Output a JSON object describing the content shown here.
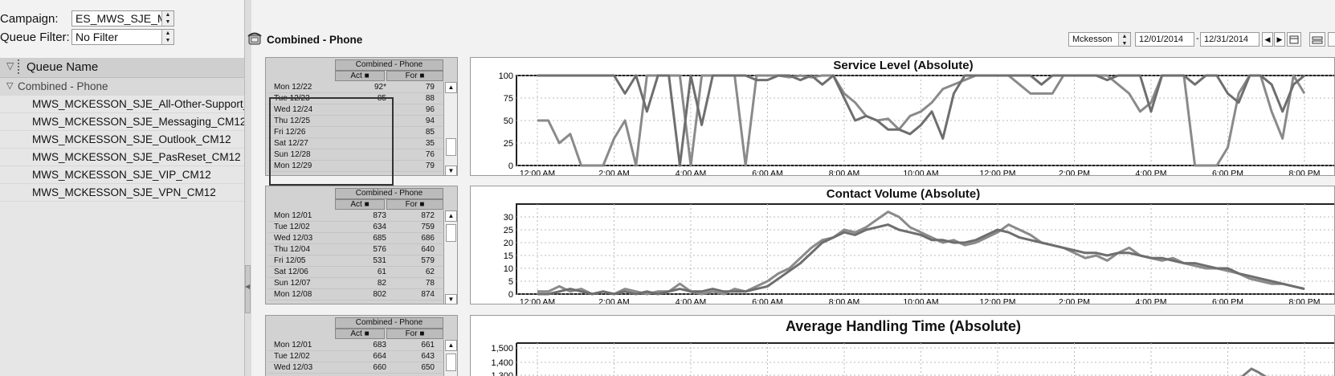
{
  "filters": {
    "campaign_label": "Campaign:",
    "campaign_value": "ES_MWS_SJE_MC",
    "queue_filter_label": "Queue Filter:",
    "queue_filter_value": "No Filter"
  },
  "queue_panel": {
    "header": "Queue Name",
    "group": "Combined - Phone",
    "items": [
      "MWS_MCKESSON_SJE_All-Other-Support_C",
      "MWS_MCKESSON_SJE_Messaging_CM12",
      "MWS_MCKESSON_SJE_Outlook_CM12",
      "MWS_MCKESSON_SJE_PasReset_CM12",
      "MWS_MCKESSON_SJE_VIP_CM12",
      "MWS_MCKESSON_SJE_VPN_CM12"
    ]
  },
  "main": {
    "title": "Combined - Phone",
    "client_value": "Mckesson",
    "date_from": "12/01/2014",
    "date_to": "12/31/2014",
    "date_sep": "-"
  },
  "tables": [
    {
      "group": "Combined - Phone",
      "act": "Act",
      "for": "For",
      "rows": [
        {
          "d": "Mon 12/22",
          "a": "92*",
          "f": "79"
        },
        {
          "d": "Tue 12/23",
          "a": "85",
          "f": "88"
        },
        {
          "d": "Wed 12/24",
          "a": "",
          "f": "96"
        },
        {
          "d": "Thu 12/25",
          "a": "",
          "f": "94"
        },
        {
          "d": "Fri 12/26",
          "a": "",
          "f": "85"
        },
        {
          "d": "Sat 12/27",
          "a": "",
          "f": "35"
        },
        {
          "d": "Sun 12/28",
          "a": "",
          "f": "76"
        },
        {
          "d": "Mon 12/29",
          "a": "",
          "f": "79"
        }
      ]
    },
    {
      "group": "Combined - Phone",
      "act": "Act",
      "for": "For",
      "rows": [
        {
          "d": "Mon 12/01",
          "a": "873",
          "f": "872"
        },
        {
          "d": "Tue 12/02",
          "a": "634",
          "f": "759"
        },
        {
          "d": "Wed 12/03",
          "a": "685",
          "f": "686"
        },
        {
          "d": "Thu 12/04",
          "a": "576",
          "f": "640"
        },
        {
          "d": "Fri 12/05",
          "a": "531",
          "f": "579"
        },
        {
          "d": "Sat 12/06",
          "a": "61",
          "f": "62"
        },
        {
          "d": "Sun 12/07",
          "a": "82",
          "f": "78"
        },
        {
          "d": "Mon 12/08",
          "a": "802",
          "f": "874"
        }
      ]
    },
    {
      "group": "Combined - Phone",
      "act": "Act",
      "for": "For",
      "rows": [
        {
          "d": "Mon 12/01",
          "a": "683",
          "f": "661"
        },
        {
          "d": "Tue 12/02",
          "a": "664",
          "f": "643"
        },
        {
          "d": "Wed 12/03",
          "a": "660",
          "f": "650"
        }
      ]
    }
  ],
  "chart_data": [
    {
      "type": "line",
      "title": "Service Level (Absolute)",
      "ylim": [
        0,
        100
      ],
      "yticks": [
        "0",
        "25",
        "50",
        "75",
        "100"
      ],
      "x_tick_labels": [
        "12:00 AM",
        "2:00 AM",
        "4:00 AM",
        "6:00 AM",
        "8:00 AM",
        "10:00 AM",
        "12:00 PM",
        "2:00 PM",
        "4:00 PM",
        "6:00 PM",
        "8:00 PM"
      ],
      "series": [
        {
          "values": [
            50,
            50,
            25,
            35,
            0,
            0,
            0,
            30,
            50,
            0,
            100,
            100,
            100,
            100,
            0,
            100,
            100,
            100,
            100,
            0,
            100,
            100,
            100,
            98,
            100,
            98,
            100,
            100,
            80,
            70,
            55,
            50,
            52,
            40,
            55,
            60,
            70,
            85,
            90,
            95,
            100,
            100,
            100,
            100,
            90,
            80,
            80,
            80,
            100,
            100,
            100,
            100,
            100,
            90,
            80,
            60,
            70,
            100,
            100,
            100,
            0,
            0,
            0,
            20,
            80,
            100,
            100,
            60,
            30,
            100,
            80
          ]
        },
        {
          "values": [
            100,
            100,
            100,
            100,
            100,
            100,
            100,
            100,
            80,
            100,
            60,
            100,
            100,
            0,
            100,
            45,
            100,
            100,
            100,
            100,
            95,
            95,
            100,
            100,
            95,
            100,
            90,
            100,
            75,
            50,
            55,
            50,
            40,
            40,
            35,
            45,
            60,
            30,
            80,
            100,
            100,
            100,
            100,
            100,
            100,
            100,
            90,
            100,
            100,
            100,
            100,
            100,
            95,
            100,
            100,
            100,
            60,
            100,
            100,
            100,
            90,
            100,
            100,
            80,
            70,
            100,
            100,
            90,
            60,
            90,
            100
          ]
        }
      ]
    },
    {
      "type": "line",
      "title": "Contact Volume (Absolute)",
      "ylim": [
        0,
        35
      ],
      "yticks": [
        "0",
        "5",
        "10",
        "15",
        "20",
        "25",
        "30"
      ],
      "x_tick_labels": [
        "12:00 AM",
        "2:00 AM",
        "4:00 AM",
        "6:00 AM",
        "8:00 AM",
        "10:00 AM",
        "12:00 PM",
        "2:00 PM",
        "4:00 PM",
        "6:00 PM",
        "8:00 PM"
      ],
      "series": [
        {
          "values": [
            1,
            1,
            3,
            1,
            2,
            0,
            1,
            0,
            2,
            1,
            0,
            1,
            1,
            4,
            1,
            0,
            1,
            0,
            2,
            1,
            3,
            5,
            8,
            10,
            14,
            18,
            21,
            22,
            25,
            24,
            26,
            29,
            32,
            30,
            26,
            24,
            22,
            20,
            21,
            19,
            20,
            22,
            24,
            27,
            25,
            23,
            20,
            19,
            18,
            16,
            14,
            15,
            13,
            16,
            18,
            15,
            14,
            13,
            14,
            12,
            11,
            10,
            10,
            9,
            8,
            6,
            5,
            4,
            4,
            3,
            2
          ]
        },
        {
          "values": [
            0,
            0,
            1,
            2,
            1,
            0,
            1,
            0,
            1,
            0,
            1,
            0,
            1,
            2,
            1,
            1,
            2,
            1,
            1,
            1,
            2,
            3,
            6,
            9,
            12,
            16,
            20,
            22,
            24,
            23,
            25,
            26,
            27,
            25,
            24,
            23,
            21,
            21,
            20,
            20,
            21,
            23,
            25,
            24,
            22,
            21,
            20,
            19,
            18,
            17,
            16,
            16,
            15,
            16,
            16,
            15,
            14,
            14,
            13,
            12,
            12,
            11,
            10,
            10,
            8,
            7,
            6,
            5,
            4,
            3,
            2
          ]
        }
      ]
    },
    {
      "type": "line",
      "title": "Average Handling Time (Absolute)",
      "yticks": [
        "1,300",
        "1,400",
        "1,500"
      ]
    }
  ]
}
